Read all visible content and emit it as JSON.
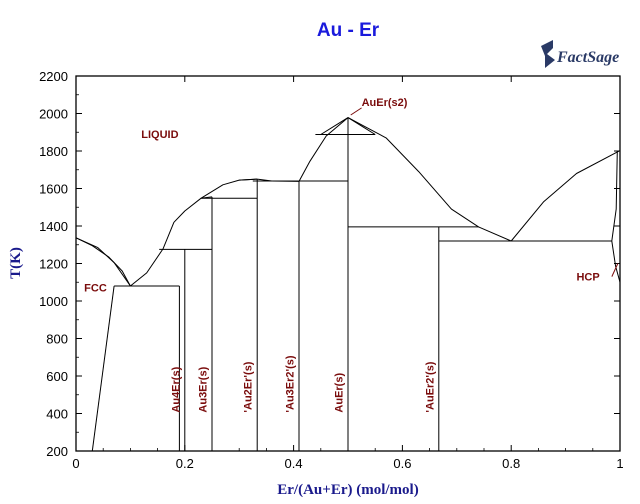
{
  "title": "Au - Er",
  "logo": {
    "text": "FactSage",
    "name": "factsage-logo"
  },
  "colors": {
    "title": "#1a1adc",
    "axis_label": "#1a1a8c",
    "phase_label": "#7a0c0c",
    "lines": "#000000"
  },
  "chart_data": {
    "type": "line",
    "title": "Au - Er",
    "xlabel": "Er/(Au+Er) (mol/mol)",
    "ylabel": "T(K)",
    "xlim": [
      0,
      1
    ],
    "ylim": [
      200,
      2200
    ],
    "grid": false,
    "xticks": [
      0,
      0.2,
      0.4,
      0.6,
      0.8,
      1
    ],
    "xtick_labels": [
      "0",
      "0.2",
      "0.4",
      "0.6",
      "0.8",
      "1"
    ],
    "yticks": [
      200,
      400,
      600,
      800,
      1000,
      1200,
      1400,
      1600,
      1800,
      2000,
      2200
    ],
    "ytick_labels": [
      "200",
      "400",
      "600",
      "800",
      "1000",
      "1200",
      "1400",
      "1600",
      "1800",
      "2000",
      "2200"
    ],
    "series": [
      {
        "points": [
          [
            0,
            1337
          ],
          [
            0.03,
            1295
          ],
          [
            0.06,
            1235
          ],
          [
            0.085,
            1160
          ],
          [
            0.1,
            1080
          ]
        ]
      },
      {
        "points": [
          [
            0,
            1337
          ],
          [
            0.04,
            1285
          ],
          [
            0.07,
            1205
          ],
          [
            0.1,
            1080
          ]
        ]
      },
      {
        "points": [
          [
            0.1,
            1080
          ],
          [
            0.13,
            1150
          ],
          [
            0.16,
            1278
          ]
        ]
      },
      {
        "points": [
          [
            0.16,
            1278
          ],
          [
            0.18,
            1420
          ],
          [
            0.2,
            1480
          ],
          [
            0.23,
            1548
          ],
          [
            0.25,
            1555
          ]
        ]
      },
      {
        "points": [
          [
            0.23,
            1548
          ],
          [
            0.27,
            1620
          ],
          [
            0.3,
            1645
          ],
          [
            0.333,
            1650
          ]
        ]
      },
      {
        "points": [
          [
            0.3,
            1645
          ],
          [
            0.333,
            1650
          ]
        ]
      },
      {
        "points": [
          [
            0.333,
            1650
          ],
          [
            0.36,
            1640
          ],
          [
            0.41,
            1638
          ]
        ]
      },
      {
        "points": [
          [
            0.41,
            1638
          ],
          [
            0.43,
            1745
          ],
          [
            0.46,
            1880
          ],
          [
            0.5,
            1978
          ]
        ]
      },
      {
        "points": [
          [
            0.5,
            1978
          ],
          [
            0.57,
            1870
          ],
          [
            0.63,
            1690
          ],
          [
            0.69,
            1490
          ],
          [
            0.74,
            1395
          ],
          [
            0.8,
            1320
          ]
        ]
      },
      {
        "points": [
          [
            0.45,
            1888
          ],
          [
            0.5,
            1978
          ],
          [
            0.55,
            1888
          ]
        ]
      },
      {
        "points": [
          [
            0.8,
            1320
          ],
          [
            0.86,
            1530
          ],
          [
            0.92,
            1680
          ],
          [
            1.0,
            1802
          ]
        ]
      },
      {
        "points": [
          [
            0.03,
            200
          ],
          [
            0.07,
            1080
          ]
        ]
      },
      {
        "points": [
          [
            0.995,
            1802
          ],
          [
            0.993,
            1490
          ],
          [
            0.985,
            1320
          ]
        ]
      },
      {
        "points": [
          [
            0.985,
            1320
          ],
          [
            0.992,
            1185
          ],
          [
            1.0,
            1100
          ]
        ]
      },
      {
        "points": [
          [
            0.07,
            1080
          ],
          [
            0.19,
            1080
          ]
        ]
      },
      {
        "points": [
          [
            0.153,
            1275
          ],
          [
            0.25,
            1275
          ]
        ]
      },
      {
        "points": [
          [
            0.23,
            1548
          ],
          [
            0.333,
            1548
          ]
        ]
      },
      {
        "points": [
          [
            0.325,
            1640
          ],
          [
            0.41,
            1640
          ]
        ]
      },
      {
        "points": [
          [
            0.41,
            1640
          ],
          [
            0.5,
            1640
          ]
        ]
      },
      {
        "points": [
          [
            0.44,
            1888
          ],
          [
            0.55,
            1888
          ]
        ]
      },
      {
        "points": [
          [
            0.5,
            1395
          ],
          [
            0.74,
            1395
          ]
        ]
      },
      {
        "points": [
          [
            0.667,
            1320
          ],
          [
            0.985,
            1320
          ]
        ]
      },
      {
        "points": [
          [
            0.19,
            200
          ],
          [
            0.19,
            1080
          ]
        ]
      },
      {
        "points": [
          [
            0.2,
            200
          ],
          [
            0.2,
            1275
          ]
        ]
      },
      {
        "points": [
          [
            0.25,
            200
          ],
          [
            0.25,
            1555
          ]
        ]
      },
      {
        "points": [
          [
            0.333,
            200
          ],
          [
            0.333,
            1650
          ]
        ]
      },
      {
        "points": [
          [
            0.41,
            200
          ],
          [
            0.41,
            1638
          ]
        ]
      },
      {
        "points": [
          [
            0.5,
            200
          ],
          [
            0.5,
            1978
          ]
        ]
      },
      {
        "points": [
          [
            0.667,
            200
          ],
          [
            0.667,
            1395
          ]
        ]
      }
    ],
    "annotations": [
      {
        "text": "LIQUID",
        "x": 0.12,
        "y": 1870,
        "rotate": 0
      },
      {
        "text": "AuEr(s2)",
        "x": 0.525,
        "y": 2040,
        "rotate": 0
      },
      {
        "text": "FCC",
        "x": 0.015,
        "y": 1050,
        "rotate": 0
      },
      {
        "text": "HCP",
        "x": 0.92,
        "y": 1110,
        "rotate": 0
      },
      {
        "text": "Au4Er(s)",
        "x": 0.19,
        "y": 405,
        "rotate": -90
      },
      {
        "text": "Au3Er(s)",
        "x": 0.24,
        "y": 405,
        "rotate": -90
      },
      {
        "text": "'Au2Er'(s)",
        "x": 0.323,
        "y": 405,
        "rotate": -90
      },
      {
        "text": "'Au3Er2'(s)",
        "x": 0.4,
        "y": 405,
        "rotate": -90
      },
      {
        "text": "AuEr(s)",
        "x": 0.49,
        "y": 405,
        "rotate": -90
      },
      {
        "text": "'AuEr2'(s)",
        "x": 0.657,
        "y": 405,
        "rotate": -90
      }
    ],
    "leaders": [
      {
        "from": [
          0.525,
          2030
        ],
        "to": [
          0.505,
          1992
        ]
      },
      {
        "from": [
          0.985,
          1130
        ],
        "to": [
          0.996,
          1200
        ]
      }
    ]
  }
}
